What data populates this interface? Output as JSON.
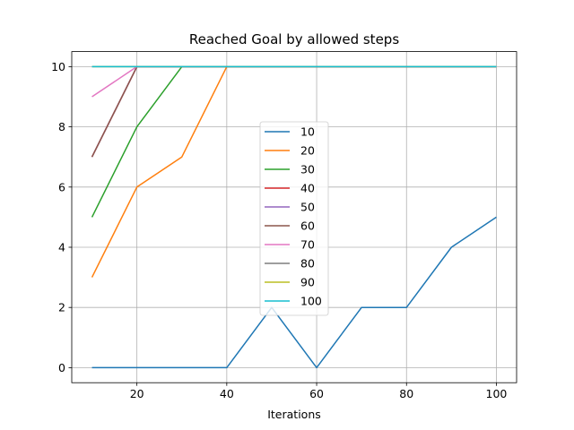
{
  "chart_data": {
    "type": "line",
    "title": "Reached Goal by allowed steps",
    "xlabel": "Iterations",
    "ylabel": "",
    "x": [
      10,
      20,
      30,
      40,
      50,
      60,
      70,
      80,
      90,
      100
    ],
    "xlim": [
      5.5,
      104.5
    ],
    "ylim": [
      -0.5,
      10.5
    ],
    "xticks": [
      20,
      40,
      60,
      80,
      100
    ],
    "yticks": [
      0,
      2,
      4,
      6,
      8,
      10
    ],
    "grid": true,
    "legend_position": "center",
    "series": [
      {
        "name": "10",
        "color": "#1f77b4",
        "values": [
          0,
          0,
          0,
          0,
          2,
          0,
          2,
          2,
          4,
          5
        ]
      },
      {
        "name": "20",
        "color": "#ff7f0e",
        "values": [
          3,
          6,
          7,
          10,
          10,
          10,
          10,
          10,
          10,
          10
        ]
      },
      {
        "name": "30",
        "color": "#2ca02c",
        "values": [
          5,
          8,
          10,
          10,
          10,
          10,
          10,
          10,
          10,
          10
        ]
      },
      {
        "name": "40",
        "color": "#d62728",
        "values": [
          7,
          10,
          10,
          10,
          10,
          10,
          10,
          10,
          10,
          10
        ]
      },
      {
        "name": "50",
        "color": "#9467bd",
        "values": [
          7,
          10,
          10,
          10,
          10,
          10,
          10,
          10,
          10,
          10
        ]
      },
      {
        "name": "60",
        "color": "#8c564b",
        "values": [
          7,
          10,
          10,
          10,
          10,
          10,
          10,
          10,
          10,
          10
        ]
      },
      {
        "name": "70",
        "color": "#e377c2",
        "values": [
          9,
          10,
          10,
          10,
          10,
          10,
          10,
          10,
          10,
          10
        ]
      },
      {
        "name": "80",
        "color": "#7f7f7f",
        "values": [
          10,
          10,
          10,
          10,
          10,
          10,
          10,
          10,
          10,
          10
        ]
      },
      {
        "name": "90",
        "color": "#bcbd22",
        "values": [
          10,
          10,
          10,
          10,
          10,
          10,
          10,
          10,
          10,
          10
        ]
      },
      {
        "name": "100",
        "color": "#17becf",
        "values": [
          10,
          10,
          10,
          10,
          10,
          10,
          10,
          10,
          10,
          10
        ]
      }
    ]
  }
}
